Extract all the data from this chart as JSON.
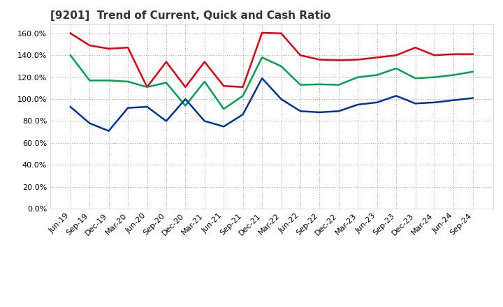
{
  "title": "[9201]  Trend of Current, Quick and Cash Ratio",
  "labels": [
    "Jun-19",
    "Sep-19",
    "Dec-19",
    "Mar-20",
    "Jun-20",
    "Sep-20",
    "Dec-20",
    "Mar-21",
    "Jun-21",
    "Sep-21",
    "Dec-21",
    "Mar-22",
    "Jun-22",
    "Sep-22",
    "Dec-22",
    "Mar-23",
    "Jun-23",
    "Sep-23",
    "Dec-23",
    "Mar-24",
    "Jun-24",
    "Sep-24"
  ],
  "current_ratio": [
    160.0,
    149.0,
    146.0,
    147.0,
    111.0,
    134.0,
    111.0,
    134.0,
    112.0,
    111.0,
    160.5,
    160.0,
    140.0,
    136.0,
    135.5,
    136.0,
    138.0,
    140.0,
    147.0,
    140.0,
    141.0,
    141.0
  ],
  "quick_ratio": [
    140.0,
    117.0,
    117.0,
    116.0,
    111.0,
    115.0,
    94.0,
    116.0,
    91.0,
    103.0,
    138.0,
    130.0,
    113.0,
    113.5,
    113.0,
    120.0,
    122.0,
    128.0,
    119.0,
    120.0,
    122.0,
    125.0
  ],
  "cash_ratio": [
    93.0,
    78.0,
    71.0,
    92.0,
    93.0,
    80.0,
    100.0,
    80.0,
    75.0,
    86.0,
    119.0,
    100.0,
    89.0,
    88.0,
    89.0,
    95.0,
    97.0,
    103.0,
    96.0,
    97.0,
    99.0,
    101.0
  ],
  "current_color": "#e8000d",
  "quick_color": "#00a550",
  "cash_color": "#0032a0",
  "ylim": [
    0,
    168
  ],
  "yticks": [
    0,
    20,
    40,
    60,
    80,
    100,
    120,
    140,
    160
  ],
  "background_color": "#ffffff",
  "plot_bg_color": "#ffffff",
  "grid_color": "#aaaaaa",
  "title_fontsize": 11,
  "tick_fontsize": 8,
  "legend_fontsize": 9
}
